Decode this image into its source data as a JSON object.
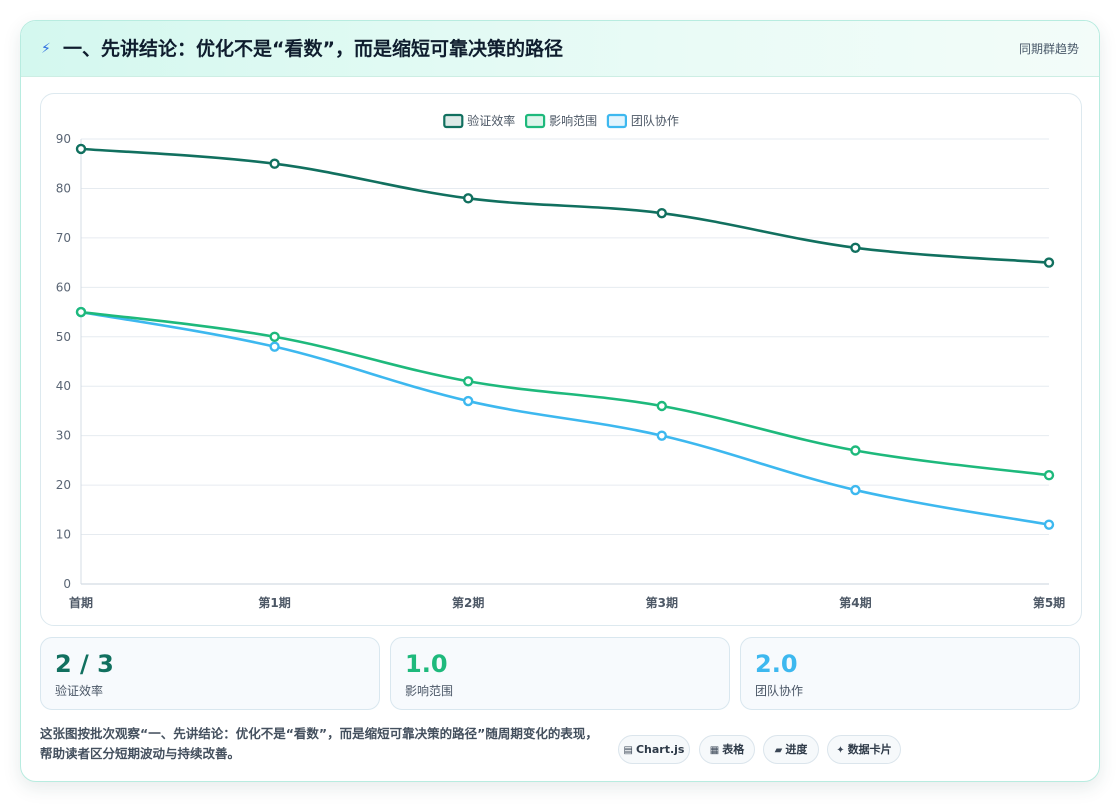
{
  "header": {
    "icon": "lightning-icon",
    "title": "一、先讲结论：优化不是“看数”，而是缩短可靠决策的路径",
    "right_label": "同期群趋势"
  },
  "chart_data": {
    "type": "line",
    "categories": [
      "首期",
      "第1期",
      "第2期",
      "第3期",
      "第4期",
      "第5期"
    ],
    "series": [
      {
        "name": "验证效率",
        "color": "#11705f",
        "values": [
          88,
          85,
          78,
          75,
          68,
          65
        ]
      },
      {
        "name": "影响范围",
        "color": "#1eb97c",
        "values": [
          55,
          50,
          41,
          36,
          27,
          22
        ]
      },
      {
        "name": "团队协作",
        "color": "#3db8ef",
        "values": [
          55,
          48,
          37,
          30,
          19,
          12
        ]
      }
    ],
    "ylim": [
      0,
      90
    ],
    "yticks": [
      0,
      10,
      20,
      30,
      40,
      50,
      60,
      70,
      80,
      90
    ],
    "grid": true,
    "legend": "top-center",
    "smooth": true
  },
  "stats": [
    {
      "value": "2 / 3",
      "label": "验证效率",
      "color": "#11705f"
    },
    {
      "value": "1.0",
      "label": "影响范围",
      "color": "#1eb97c"
    },
    {
      "value": "2.0",
      "label": "团队协作",
      "color": "#3db8ef"
    }
  ],
  "footer": {
    "text": "这张图按批次观察“一、先讲结论：优化不是“看数”，而是缩短可靠决策的路径”随周期变化的表现，帮助读者区分短期波动与持续改善。"
  },
  "tags": [
    {
      "icon": "▤",
      "label": "Chart.js"
    },
    {
      "icon": "▦",
      "label": "表格"
    },
    {
      "icon": "▰",
      "label": "进度"
    },
    {
      "icon": "✦",
      "label": "数据卡片"
    }
  ]
}
